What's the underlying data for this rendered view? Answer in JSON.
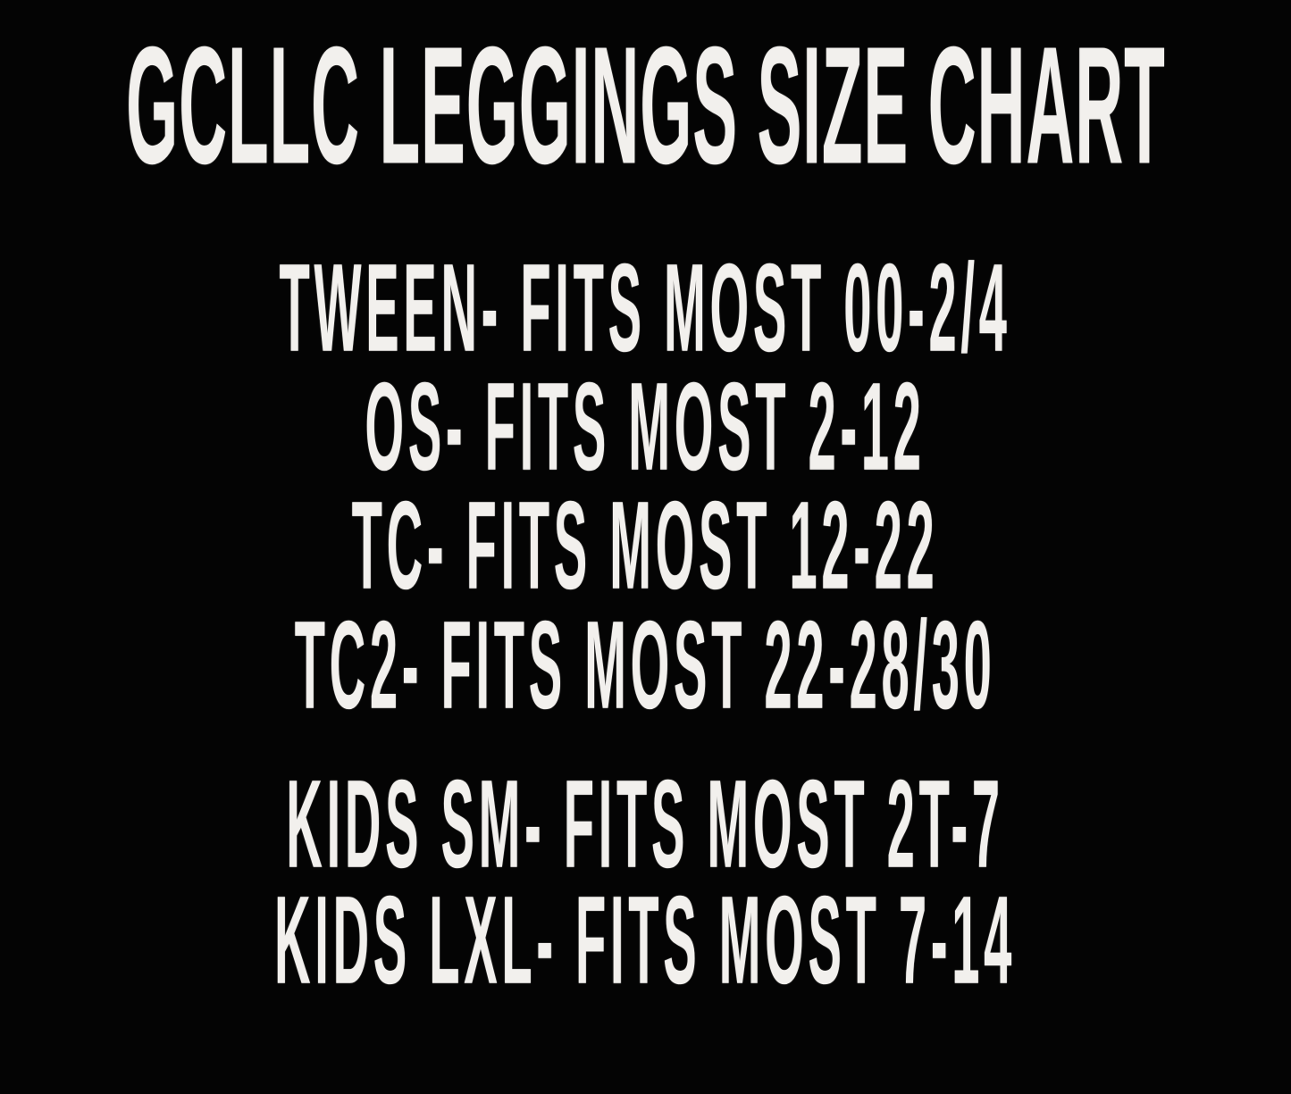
{
  "page": {
    "background_color": "#040404",
    "text_color": "#f2f0ed"
  },
  "title": "GCLLC LEGGINGS SIZE CHART",
  "sizes": {
    "adult": [
      {
        "size": "TWEEN",
        "fits": "FITS MOST 00-2/4",
        "text": "TWEEN- FITS MOST 00-2/4"
      },
      {
        "size": "OS",
        "fits": "FITS MOST 2-12",
        "text": "OS- FITS MOST 2-12"
      },
      {
        "size": "TC",
        "fits": "FITS MOST 12-22",
        "text": "TC- FITS MOST 12-22"
      },
      {
        "size": "TC2",
        "fits": "FITS MOST 22-28/30",
        "text": "TC2- FITS MOST 22-28/30"
      }
    ],
    "kids": [
      {
        "size": "KIDS SM",
        "fits": "FITS MOST 2T-7",
        "text": "KIDS SM- FITS MOST 2T-7"
      },
      {
        "size": "KIDS LXL",
        "fits": "FITS MOST 7-14",
        "text": "KIDS LXL- FITS MOST 7-14"
      }
    ]
  }
}
